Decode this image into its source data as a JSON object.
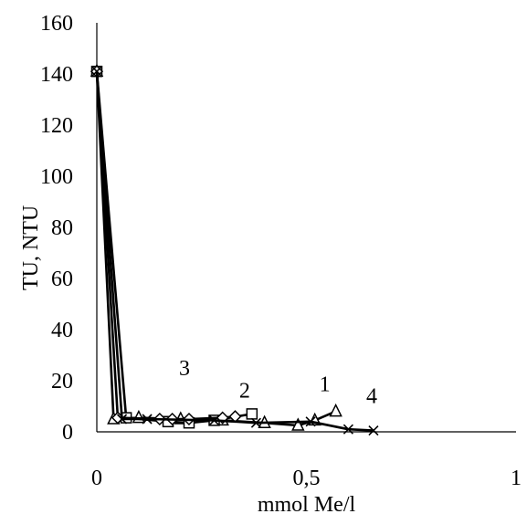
{
  "chart_data": {
    "type": "scatter",
    "title": "",
    "xlabel": "mmol Me/l",
    "ylabel": "TU, NTU",
    "xlim": [
      0,
      1
    ],
    "ylim": [
      0,
      160
    ],
    "x_ticks": [
      "0",
      "0,5",
      "1"
    ],
    "y_ticks": [
      "0",
      "20",
      "40",
      "60",
      "80",
      "100",
      "120",
      "140",
      "160"
    ],
    "grid": false,
    "legend": "none",
    "series": [
      {
        "label": "1",
        "marker": "triangle",
        "points": [
          {
            "x": 0,
            "y": 141
          },
          {
            "x": 0.04,
            "y": 5
          },
          {
            "x": 0.1,
            "y": 5.5
          },
          {
            "x": 0.2,
            "y": 5
          },
          {
            "x": 0.3,
            "y": 4.5
          },
          {
            "x": 0.4,
            "y": 3.5
          },
          {
            "x": 0.48,
            "y": 2.5
          },
          {
            "x": 0.52,
            "y": 4.5
          },
          {
            "x": 0.57,
            "y": 8
          }
        ]
      },
      {
        "label": "2",
        "marker": "square",
        "points": [
          {
            "x": 0,
            "y": 141
          },
          {
            "x": 0.07,
            "y": 5.5
          },
          {
            "x": 0.17,
            "y": 4
          },
          {
            "x": 0.22,
            "y": 3.5
          },
          {
            "x": 0.28,
            "y": 4.5
          },
          {
            "x": 0.37,
            "y": 7
          }
        ]
      },
      {
        "label": "3",
        "marker": "diamond",
        "points": [
          {
            "x": 0,
            "y": 141
          },
          {
            "x": 0.05,
            "y": 5.5
          },
          {
            "x": 0.15,
            "y": 5
          },
          {
            "x": 0.18,
            "y": 5
          },
          {
            "x": 0.22,
            "y": 5
          },
          {
            "x": 0.3,
            "y": 5.5
          },
          {
            "x": 0.33,
            "y": 6
          }
        ]
      },
      {
        "label": "4",
        "marker": "x",
        "points": [
          {
            "x": 0,
            "y": 141
          },
          {
            "x": 0.06,
            "y": 5
          },
          {
            "x": 0.12,
            "y": 5
          },
          {
            "x": 0.28,
            "y": 4.5
          },
          {
            "x": 0.38,
            "y": 3.5
          },
          {
            "x": 0.51,
            "y": 4
          },
          {
            "x": 0.6,
            "y": 1
          },
          {
            "x": 0.66,
            "y": 0.5
          }
        ]
      }
    ]
  }
}
